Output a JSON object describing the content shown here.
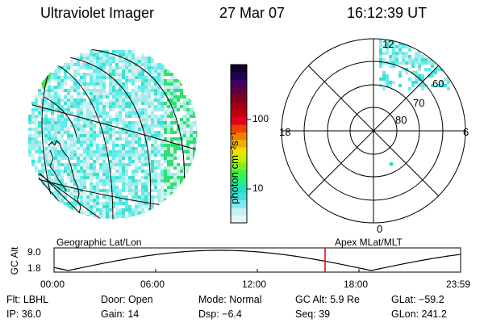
{
  "header": {
    "instrument": "Ultraviolet Imager",
    "date": "27 Mar 07",
    "time": "16:12:39 UT"
  },
  "colorbar": {
    "unit_label": "photon cm⁻²s⁻¹",
    "ticks": [
      "100",
      "10"
    ],
    "scale": "log",
    "colors": [
      "#100030",
      "#200050",
      "#400060",
      "#600040",
      "#800020",
      "#a00010",
      "#c00010",
      "#e00020",
      "#f04000",
      "#f08000",
      "#f0b000",
      "#f0e000",
      "#c0f000",
      "#80f020",
      "#40f040",
      "#20f080",
      "#20e0c0",
      "#40e0e0",
      "#80e8e8",
      "#c0f0f0",
      "#e8f4f4"
    ]
  },
  "left_panel": {
    "caption": "Geographic Lat/Lon",
    "pixel_colors": [
      "#40e0d0",
      "#20e0a0",
      "#60ecec",
      "#a0eceb",
      "#d0efef",
      "#30e070"
    ]
  },
  "right_panel": {
    "caption": "Apex MLat/MLT",
    "mlt_labels": {
      "top": "12",
      "left": "18",
      "right": "6",
      "bottom": "0"
    },
    "mlat_labels": [
      "60",
      "70",
      "80"
    ]
  },
  "orbit_plot": {
    "ylabel": "GC Alt",
    "ytick_labels": [
      "9.0",
      "1.8"
    ],
    "xtick_labels": [
      "00:00",
      "06:00",
      "12:00",
      "18:00",
      "23:59"
    ],
    "current_time_marker": "16:12:39",
    "marker_color": "#e00000"
  },
  "info": {
    "filter": "Flt: LBHL",
    "door": "Door: Open",
    "mode": "Mode: Normal",
    "gc_alt": "GC Alt: 5.9 Re",
    "glat": "GLat: −59.2",
    "ip": "IP: 36.0",
    "gain": "Gain: 14",
    "dsp": "Dsp:    −6.4",
    "seq": "Seq: 39",
    "glon": "GLon: 241.2"
  }
}
